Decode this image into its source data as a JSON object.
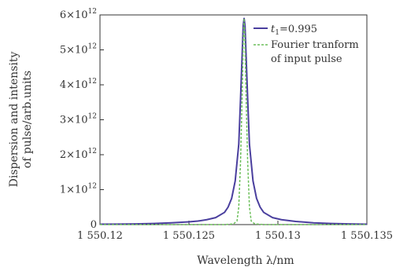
{
  "chart_data": {
    "type": "line",
    "xlabel": "Wavelength λ/nm",
    "ylabel_line1": "Dispersion and intensity",
    "ylabel_line2": "of pulse/arb.units",
    "xlim": [
      1550.12,
      1550.135
    ],
    "ylim": [
      0,
      6000000000000.0
    ],
    "x_ticks": [
      {
        "value": 1550.12,
        "label": "1 550.12"
      },
      {
        "value": 1550.125,
        "label": "1 550.125"
      },
      {
        "value": 1550.13,
        "label": "1 550.13"
      },
      {
        "value": 1550.135,
        "label": "1 550.135"
      }
    ],
    "y_ticks": [
      {
        "value": 0,
        "mantissa": "0",
        "exponent": ""
      },
      {
        "value": 1000000000000.0,
        "mantissa": "1×10",
        "exponent": "12"
      },
      {
        "value": 2000000000000.0,
        "mantissa": "2×10",
        "exponent": "12"
      },
      {
        "value": 3000000000000.0,
        "mantissa": "3×10",
        "exponent": "12"
      },
      {
        "value": 4000000000000.0,
        "mantissa": "4×10",
        "exponent": "12"
      },
      {
        "value": 5000000000000.0,
        "mantissa": "5×10",
        "exponent": "12"
      },
      {
        "value": 6000000000000.0,
        "mantissa": "6×10",
        "exponent": "12"
      }
    ],
    "grid": false,
    "legend_position": "top-right",
    "series": [
      {
        "name": "t",
        "name_subscript": "1",
        "name_suffix": "=0.995",
        "color": "#4a3f9e",
        "style": "solid",
        "points": [
          [
            1550.12,
            10000000000.0
          ],
          [
            1550.121,
            15000000000.0
          ],
          [
            1550.122,
            20000000000.0
          ],
          [
            1550.123,
            30000000000.0
          ],
          [
            1550.124,
            50000000000.0
          ],
          [
            1550.125,
            80000000000.0
          ],
          [
            1550.1255,
            100000000000.0
          ],
          [
            1550.126,
            140000000000.0
          ],
          [
            1550.1265,
            200000000000.0
          ],
          [
            1550.127,
            350000000000.0
          ],
          [
            1550.1272,
            500000000000.0
          ],
          [
            1550.1274,
            750000000000.0
          ],
          [
            1550.1276,
            1250000000000.0
          ],
          [
            1550.1278,
            2300000000000.0
          ],
          [
            1550.1279,
            3600000000000.0
          ],
          [
            1550.128,
            5000000000000.0
          ],
          [
            1550.12805,
            5700000000000.0
          ],
          [
            1550.1281,
            5900000000000.0
          ],
          [
            1550.12815,
            5700000000000.0
          ],
          [
            1550.1282,
            5000000000000.0
          ],
          [
            1550.1283,
            3600000000000.0
          ],
          [
            1550.1284,
            2300000000000.0
          ],
          [
            1550.1286,
            1250000000000.0
          ],
          [
            1550.1288,
            750000000000.0
          ],
          [
            1550.129,
            500000000000.0
          ],
          [
            1550.1292,
            350000000000.0
          ],
          [
            1550.1297,
            200000000000.0
          ],
          [
            1550.1302,
            140000000000.0
          ],
          [
            1550.131,
            90000000000.0
          ],
          [
            1550.132,
            50000000000.0
          ],
          [
            1550.133,
            30000000000.0
          ],
          [
            1550.134,
            20000000000.0
          ],
          [
            1550.135,
            10000000000.0
          ]
        ]
      },
      {
        "name": "Fourier tranform",
        "name_line2": "of input pulse",
        "color": "#6cbf5a",
        "style": "dashed",
        "points": [
          [
            1550.12,
            0
          ],
          [
            1550.127,
            0
          ],
          [
            1550.1275,
            20000000000.0
          ],
          [
            1550.1277,
            100000000000.0
          ],
          [
            1550.1278,
            500000000000.0
          ],
          [
            1550.1279,
            1800000000000.0
          ],
          [
            1550.128,
            3900000000000.0
          ],
          [
            1550.12805,
            5200000000000.0
          ],
          [
            1550.1281,
            5900000000000.0
          ],
          [
            1550.12815,
            5200000000000.0
          ],
          [
            1550.1282,
            3900000000000.0
          ],
          [
            1550.1283,
            1800000000000.0
          ],
          [
            1550.1284,
            500000000000.0
          ],
          [
            1550.1285,
            100000000000.0
          ],
          [
            1550.1287,
            20000000000.0
          ],
          [
            1550.1292,
            0
          ],
          [
            1550.135,
            0
          ]
        ]
      }
    ]
  }
}
